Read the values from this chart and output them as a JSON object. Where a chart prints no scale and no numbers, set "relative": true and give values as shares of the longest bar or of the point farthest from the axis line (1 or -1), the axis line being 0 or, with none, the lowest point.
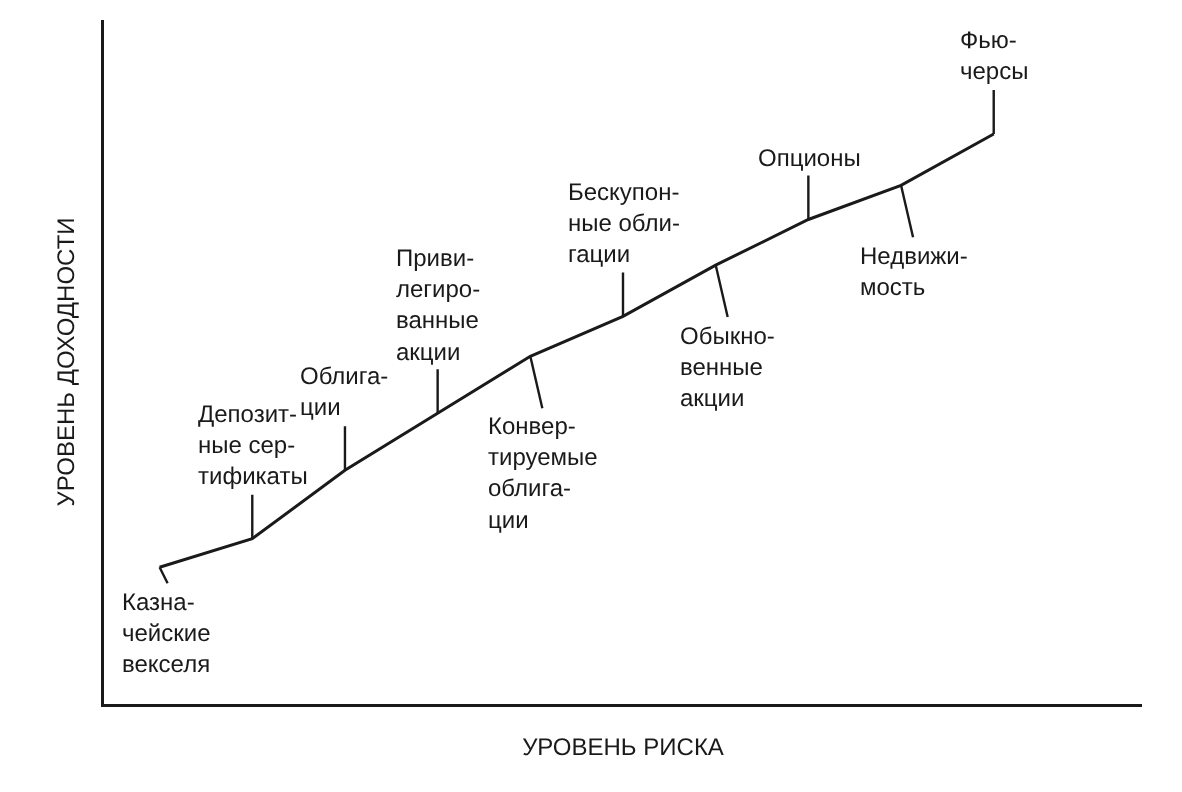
{
  "chart_data": {
    "type": "line",
    "relative": true,
    "xlabel": "УРОВЕНЬ РИСКА",
    "ylabel": "УРОВЕНЬ ДОХОДНОСТИ",
    "categories": [
      null,
      null,
      null,
      null,
      null,
      null,
      null,
      null,
      null,
      null
    ],
    "series": [
      {
        "color": "#1a1a1a",
        "values": [
          0.24,
          0.29,
          0.41,
          0.51,
          0.61,
          0.68,
          0.77,
          0.85,
          0.91,
          1.0
        ]
      }
    ],
    "annotations": [
      {
        "text": "Казна-\nчейские\nвекселя",
        "y": 0.24
      },
      {
        "text": "Депозит-\nные сер-\nтификаты",
        "y": 0.29
      },
      {
        "text": "Облига-\nции",
        "y": 0.41
      },
      {
        "text": "Приви-\nлегиро-\nванные\nакции",
        "y": 0.51
      },
      {
        "text": "Конвер-\nтируемые\nоблига-\nции",
        "y": 0.61
      },
      {
        "text": "Бескупон-\nные обли-\nгации",
        "y": 0.68
      },
      {
        "text": "Обыкно-\nвенные\nакции",
        "y": 0.77
      },
      {
        "text": "Опционы",
        "y": 0.85
      },
      {
        "text": "Недвижи-\nмость",
        "y": 0.91
      },
      {
        "text": "Фью-\nчерсы",
        "y": 1.0
      }
    ],
    "line_style": "solid",
    "grid": false
  }
}
